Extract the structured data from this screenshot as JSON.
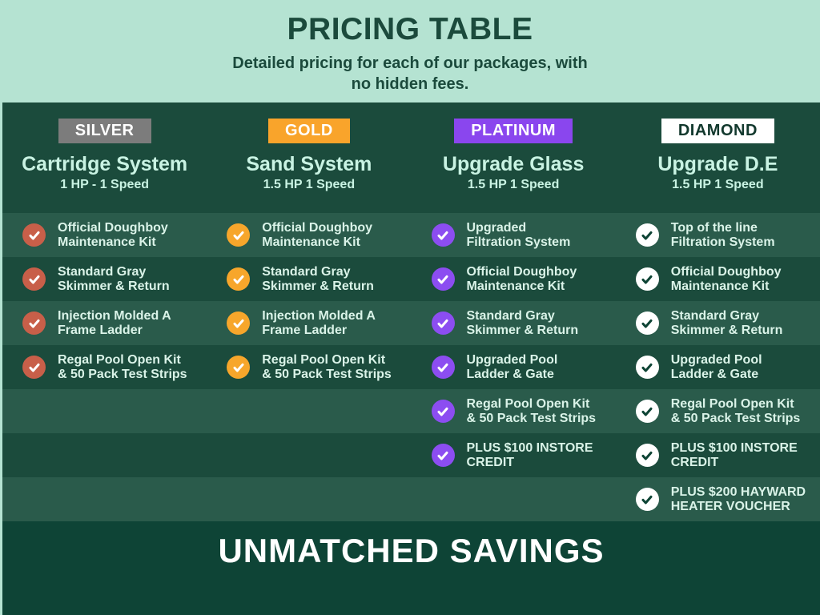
{
  "hero": {
    "title": "PRICING TABLE",
    "subtitle": "Detailed pricing for each of our packages, with no hidden fees."
  },
  "columns": [
    {
      "badge": "SILVER",
      "badge_bg": "#7c7c7c",
      "badge_fg": "#ffffff",
      "title": "Cartridge System",
      "subtitle": "1 HP - 1 Speed",
      "check_bg": "#c85f49",
      "check_fg": "#ffffff",
      "items": [
        [
          "Official Doughboy",
          "Maintenance Kit"
        ],
        [
          "Standard Gray",
          "Skimmer & Return"
        ],
        [
          "Injection Molded A",
          "Frame Ladder"
        ],
        [
          "Regal Pool Open Kit",
          "& 50 Pack Test Strips"
        ],
        null,
        null,
        null
      ]
    },
    {
      "badge": "GOLD",
      "badge_bg": "#f9a42b",
      "badge_fg": "#ffffff",
      "title": "Sand System",
      "subtitle": "1.5 HP 1 Speed",
      "check_bg": "#f7a62b",
      "check_fg": "#ffffff",
      "items": [
        [
          "Official Doughboy",
          "Maintenance Kit"
        ],
        [
          "Standard Gray",
          "Skimmer & Return"
        ],
        [
          "Injection Molded A",
          "Frame Ladder"
        ],
        [
          "Regal Pool Open Kit",
          "& 50 Pack Test Strips"
        ],
        null,
        null,
        null
      ]
    },
    {
      "badge": "PLATINUM",
      "badge_bg": "#8a46ee",
      "badge_fg": "#ffffff",
      "title": "Upgrade Glass",
      "subtitle": "1.5 HP 1 Speed",
      "check_bg": "#8c4df1",
      "check_fg": "#ffffff",
      "items": [
        [
          "Upgraded",
          "Filtration System"
        ],
        [
          "Official Doughboy",
          "Maintenance Kit"
        ],
        [
          "Standard Gray",
          "Skimmer & Return"
        ],
        [
          "Upgraded Pool",
          "Ladder & Gate"
        ],
        [
          "Regal Pool Open Kit",
          "& 50 Pack Test Strips"
        ],
        [
          "PLUS $100 INSTORE",
          "CREDIT"
        ],
        null
      ]
    },
    {
      "badge": "DIAMOND",
      "badge_bg": "#ffffff",
      "badge_fg": "#12382d",
      "title": "Upgrade D.E",
      "subtitle": "1.5 HP 1 Speed",
      "check_bg": "#ffffff",
      "check_fg": "#0d4334",
      "items": [
        [
          "Top of the line",
          "Filtration System"
        ],
        [
          "Official Doughboy",
          "Maintenance Kit"
        ],
        [
          "Standard Gray",
          "Skimmer & Return"
        ],
        [
          "Upgraded Pool",
          "Ladder & Gate"
        ],
        [
          "Regal Pool Open Kit",
          "& 50 Pack Test Strips"
        ],
        [
          "PLUS $100 INSTORE",
          "CREDIT"
        ],
        [
          "PLUS $200 HAYWARD",
          "HEATER VOUCHER"
        ]
      ]
    }
  ],
  "banner": {
    "text": "UNMATCHED SAVINGS"
  },
  "colors": {
    "mint": "#b5e3d2",
    "heading": "#1b4a3c",
    "table_dark": "#1b4b3c",
    "row_light": "#2a5b4b",
    "banner_bg": "#0e4436",
    "feature_text": "#daf3e8",
    "column_title": "#c9f3e3"
  }
}
